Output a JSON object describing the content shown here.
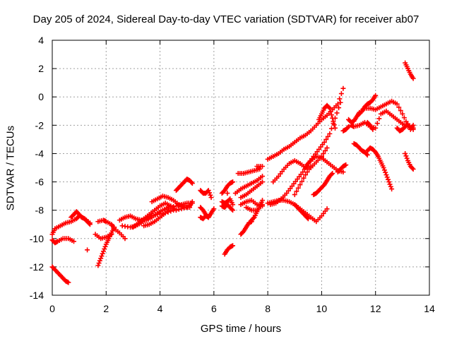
{
  "chart_data": {
    "type": "scatter",
    "title": "Day 205 of 2024, Sidereal Day-to-day VTEC variation (SDTVAR) for receiver ab07",
    "xlabel": "GPS time / hours",
    "ylabel": "SDTVAR / TECUs",
    "xlim": [
      0,
      14
    ],
    "ylim": [
      -14,
      4
    ],
    "xticks": [
      "0",
      "2",
      "4",
      "6",
      "8",
      "10",
      "12",
      "14"
    ],
    "yticks": [
      "4",
      "2",
      "0",
      "-2",
      "-4",
      "-6",
      "-8",
      "-10",
      "-12",
      "-14"
    ],
    "grid": true,
    "marker": "+",
    "color": "#ff0000",
    "series": [
      {
        "x": [
          0.0,
          0.1,
          0.3,
          0.5,
          0.7,
          0.9,
          1.0,
          1.2,
          1.4
        ],
        "y": [
          -9.7,
          -9.3,
          -9.1,
          -8.9,
          -8.8,
          -8.6,
          -8.4,
          -8.6,
          -8.9
        ]
      },
      {
        "x": [
          0.7,
          0.8,
          0.9,
          1.0,
          1.1,
          1.2,
          1.3,
          1.4
        ],
        "y": [
          -8.5,
          -8.3,
          -8.1,
          -8.3,
          -8.5,
          -8.6,
          -8.8,
          -9.0
        ]
      },
      {
        "x": [
          0.0,
          0.1,
          0.2,
          0.4,
          0.6,
          0.8
        ],
        "y": [
          -10.1,
          -10.3,
          -10.2,
          -10.0,
          -10.0,
          -10.2
        ]
      },
      {
        "x": [
          0.0,
          0.1,
          0.2,
          0.3,
          0.4,
          0.5,
          0.6
        ],
        "y": [
          -12.0,
          -12.2,
          -12.4,
          -12.6,
          -12.8,
          -13.0,
          -13.1
        ]
      },
      {
        "x": [
          1.3
        ],
        "y": [
          -10.8
        ]
      },
      {
        "x": [
          1.7,
          1.8,
          1.9,
          2.0,
          2.1,
          2.2,
          2.3
        ],
        "y": [
          -11.9,
          -11.4,
          -10.9,
          -10.4,
          -10.0,
          -9.6,
          -9.2
        ]
      },
      {
        "x": [
          1.7,
          1.9,
          2.0,
          2.2,
          2.3,
          2.5,
          2.7
        ],
        "y": [
          -8.8,
          -8.7,
          -8.8,
          -9.0,
          -9.3,
          -9.6,
          -10.0
        ]
      },
      {
        "x": [
          1.6,
          1.8,
          2.0,
          2.2
        ],
        "y": [
          -9.7,
          -10.0,
          -9.9,
          -9.7
        ]
      },
      {
        "x": [
          2.5,
          2.7,
          2.9,
          3.1,
          3.3,
          3.5,
          3.7,
          3.9,
          4.1,
          4.3,
          4.6,
          4.8,
          5.0,
          5.2
        ],
        "y": [
          -8.7,
          -8.5,
          -8.4,
          -8.6,
          -8.7,
          -8.7,
          -8.5,
          -8.2,
          -8.0,
          -7.8,
          -7.7,
          -7.6,
          -7.5,
          -7.5
        ]
      },
      {
        "x": [
          2.6,
          2.9,
          3.1,
          3.3,
          3.5,
          3.7,
          3.9,
          4.2,
          4.5,
          4.8,
          5.1,
          5.2
        ],
        "y": [
          -9.1,
          -9.2,
          -9.1,
          -8.9,
          -8.6,
          -8.4,
          -8.3,
          -8.2,
          -8.0,
          -7.9,
          -7.7,
          -7.4
        ]
      },
      {
        "x": [
          3.0,
          3.2,
          3.4,
          3.6,
          3.8,
          4.0,
          4.2,
          4.4,
          4.6
        ],
        "y": [
          -9.2,
          -8.9,
          -8.6,
          -8.3,
          -8.0,
          -7.7,
          -7.5,
          -7.7,
          -8.0
        ]
      },
      {
        "x": [
          3.4,
          3.6,
          3.8,
          4.0,
          4.2,
          4.4
        ],
        "y": [
          -9.1,
          -9.0,
          -8.8,
          -8.5,
          -8.2,
          -7.9
        ]
      },
      {
        "x": [
          3.7,
          3.9,
          4.1,
          4.3,
          4.5,
          4.7,
          4.9,
          5.1
        ],
        "y": [
          -7.4,
          -7.2,
          -7.0,
          -7.1,
          -7.3,
          -7.6,
          -7.8,
          -7.8
        ]
      },
      {
        "x": [
          4.6,
          4.7,
          4.8,
          4.9,
          5.0,
          5.1,
          5.2
        ],
        "y": [
          -6.6,
          -6.4,
          -6.2,
          -6.0,
          -5.8,
          -5.9,
          -6.1
        ]
      },
      {
        "x": [
          5.5,
          5.6,
          5.7,
          5.8,
          5.9
        ],
        "y": [
          -6.6,
          -6.8,
          -6.8,
          -6.6,
          -7.1
        ]
      },
      {
        "x": [
          5.5,
          5.6,
          5.7,
          5.8,
          5.9,
          6.0
        ],
        "y": [
          -7.8,
          -8.0,
          -8.3,
          -8.5,
          -8.2,
          -7.9
        ]
      },
      {
        "x": [
          5.5,
          5.6,
          5.7,
          5.8
        ],
        "y": [
          -8.5,
          -8.6,
          -8.4,
          -8.5
        ]
      },
      {
        "x": [
          6.3,
          6.4,
          6.5,
          6.6,
          6.7
        ],
        "y": [
          -6.8,
          -6.6,
          -6.3,
          -6.1,
          -6.0
        ]
      },
      {
        "x": [
          6.3,
          6.4,
          6.5,
          6.6,
          6.7
        ],
        "y": [
          -7.4,
          -7.5,
          -7.4,
          -7.2,
          -7.6
        ]
      },
      {
        "x": [
          6.3,
          6.4,
          6.5,
          6.6,
          6.7
        ],
        "y": [
          -7.7,
          -7.8,
          -7.6,
          -7.8,
          -8.0
        ]
      },
      {
        "x": [
          6.4,
          6.5,
          6.6,
          6.7
        ],
        "y": [
          -11.1,
          -10.8,
          -10.6,
          -10.5
        ]
      },
      {
        "x": [
          6.8,
          7.0,
          7.2,
          7.4,
          7.6,
          7.8
        ],
        "y": [
          -6.8,
          -6.5,
          -6.3,
          -6.1,
          -5.9,
          -5.6
        ]
      },
      {
        "x": [
          7.0,
          7.2,
          7.4,
          7.6,
          7.8
        ],
        "y": [
          -7.1,
          -6.9,
          -6.6,
          -6.3,
          -6.0
        ]
      },
      {
        "x": [
          6.9,
          7.1,
          7.3,
          7.5,
          7.7
        ],
        "y": [
          -5.4,
          -5.4,
          -5.3,
          -5.2,
          -5.1
        ]
      },
      {
        "x": [
          7.6,
          7.8
        ],
        "y": [
          -4.9,
          -4.9
        ]
      },
      {
        "x": [
          7.0,
          7.2,
          7.4,
          7.6,
          7.8
        ],
        "y": [
          -7.6,
          -7.4,
          -7.3,
          -7.6,
          -7.7
        ]
      },
      {
        "x": [
          7.2,
          7.4,
          7.6,
          7.8
        ],
        "y": [
          -7.8,
          -8.0,
          -8.0,
          -7.6
        ]
      },
      {
        "x": [
          7.4,
          7.5,
          7.6,
          7.7,
          7.8
        ],
        "y": [
          -8.7,
          -8.5,
          -8.1,
          -7.7,
          -7.3
        ]
      },
      {
        "x": [
          7.0,
          7.1,
          7.2,
          7.3,
          7.4
        ],
        "y": [
          -9.7,
          -9.5,
          -9.2,
          -8.9,
          -8.8
        ]
      },
      {
        "x": [
          6.5
        ],
        "y": [
          -6.8
        ]
      },
      {
        "x": [
          8.0,
          8.2,
          8.4,
          8.6,
          8.8,
          9.0,
          9.2,
          9.4,
          9.6,
          9.8,
          10.0,
          10.2,
          10.4,
          10.6,
          10.8
        ],
        "y": [
          -4.4,
          -4.2,
          -4.0,
          -3.7,
          -3.5,
          -3.2,
          -2.9,
          -2.7,
          -2.4,
          -2.0,
          -1.6,
          -1.3,
          -0.9,
          -0.5,
          0.6
        ]
      },
      {
        "x": [
          8.1,
          8.3,
          8.5,
          8.7,
          8.9,
          9.1,
          9.3,
          9.5,
          9.7,
          9.9,
          10.1,
          10.3,
          10.5,
          10.7
        ],
        "y": [
          -7.6,
          -7.5,
          -7.2,
          -6.8,
          -6.3,
          -5.8,
          -5.3,
          -4.7,
          -4.2,
          -3.7,
          -3.2,
          -2.6,
          -1.5,
          -0.4
        ]
      },
      {
        "x": [
          8.2,
          8.4,
          8.6,
          8.8,
          9.0,
          9.2,
          9.4,
          9.6,
          9.8,
          10.0,
          10.2
        ],
        "y": [
          -6.0,
          -5.6,
          -5.1,
          -4.7,
          -4.5,
          -4.7,
          -5.0,
          -5.0,
          -4.6,
          -4.2,
          -3.6
        ]
      },
      {
        "x": [
          8.0,
          8.2,
          8.4,
          8.6,
          8.8,
          9.0,
          9.2,
          9.4,
          9.6,
          9.8,
          10.0,
          10.2
        ],
        "y": [
          -7.5,
          -7.4,
          -7.3,
          -7.3,
          -7.4,
          -7.6,
          -7.9,
          -8.2,
          -8.5,
          -8.8,
          -8.4,
          -7.9
        ]
      },
      {
        "x": [
          9.0,
          9.1,
          9.2,
          9.3,
          9.4,
          9.5
        ],
        "y": [
          -7.6,
          -7.8,
          -8.0,
          -8.2,
          -8.4,
          -8.6
        ]
      },
      {
        "x": [
          9.4,
          9.6,
          9.8,
          10.0,
          10.2,
          10.4,
          10.6,
          10.8
        ],
        "y": [
          -4.9,
          -4.5,
          -4.2,
          -4.3,
          -4.6,
          -4.9,
          -5.2,
          -5.3
        ]
      },
      {
        "x": [
          9.7,
          9.8,
          9.9,
          10.0,
          10.1,
          10.2,
          10.3,
          10.4
        ],
        "y": [
          -6.9,
          -6.8,
          -6.6,
          -6.4,
          -6.2,
          -5.9,
          -5.6,
          -5.4
        ]
      },
      {
        "x": [
          9.9,
          10.0,
          10.1,
          10.2,
          10.3,
          10.4,
          10.5
        ],
        "y": [
          -1.6,
          -1.2,
          -0.8,
          -0.6,
          -0.8,
          -1.5,
          -2.2
        ]
      },
      {
        "x": [
          9.0,
          9.2,
          9.4,
          9.6
        ],
        "y": [
          -6.9,
          -6.2,
          -5.5,
          -4.9
        ]
      },
      {
        "x": [
          10.6,
          10.7,
          10.8,
          10.9
        ],
        "y": [
          -5.3,
          -5.1,
          -4.9,
          -4.8
        ]
      },
      {
        "x": [
          10.8,
          10.9,
          11.0
        ],
        "y": [
          -2.4,
          -2.3,
          -2.1
        ]
      },
      {
        "x": [
          11.0,
          11.1,
          11.2,
          11.3,
          11.4,
          11.6,
          11.8,
          12.0,
          12.2,
          12.4,
          12.6,
          12.8,
          13.0,
          13.2,
          13.4
        ],
        "y": [
          -1.6,
          -1.8,
          -1.7,
          -1.4,
          -1.1,
          -0.8,
          -0.8,
          -0.9,
          -0.7,
          -0.5,
          -0.3,
          -0.5,
          -1.2,
          -2.0,
          -2.3
        ]
      },
      {
        "x": [
          11.4,
          11.5,
          11.6,
          11.7,
          11.8,
          11.9,
          12.0
        ],
        "y": [
          -1.2,
          -1.0,
          -0.7,
          -0.5,
          -0.4,
          -0.2,
          0.1
        ]
      },
      {
        "x": [
          11.1,
          11.2,
          11.4,
          11.6,
          11.8,
          12.0,
          12.2,
          12.4,
          12.6,
          12.8,
          13.0,
          13.2,
          13.4
        ],
        "y": [
          -2.0,
          -2.1,
          -2.0,
          -1.8,
          -2.1,
          -2.2,
          -1.2,
          -1.0,
          -1.3,
          -1.6,
          -1.9,
          -2.1,
          -2.2
        ]
      },
      {
        "x": [
          11.2,
          11.3,
          11.4,
          11.5,
          11.6,
          11.7
        ],
        "y": [
          -3.3,
          -3.4,
          -3.6,
          -3.8,
          -3.9,
          -4.1
        ]
      },
      {
        "x": [
          11.7,
          11.8,
          11.9,
          12.0,
          12.1,
          12.2,
          12.3,
          12.4,
          12.5,
          12.6
        ],
        "y": [
          -3.8,
          -3.6,
          -3.7,
          -3.9,
          -4.2,
          -4.6,
          -5.0,
          -5.5,
          -6.0,
          -6.5
        ]
      },
      {
        "x": [
          11.7,
          11.8,
          11.9
        ],
        "y": [
          -1.8,
          -2.0,
          -2.3
        ]
      },
      {
        "x": [
          13.1,
          13.2,
          13.3,
          13.4
        ],
        "y": [
          2.4,
          2.0,
          1.6,
          1.3
        ]
      },
      {
        "x": [
          13.1,
          13.2,
          13.3,
          13.4
        ],
        "y": [
          -4.0,
          -4.5,
          -4.9,
          -5.1
        ]
      },
      {
        "x": [
          12.8,
          12.9,
          13.0,
          13.1,
          13.2,
          13.3,
          13.4
        ],
        "y": [
          -2.2,
          -2.4,
          -2.3,
          -2.1,
          -1.9,
          -2.3,
          -2.0
        ]
      }
    ]
  }
}
